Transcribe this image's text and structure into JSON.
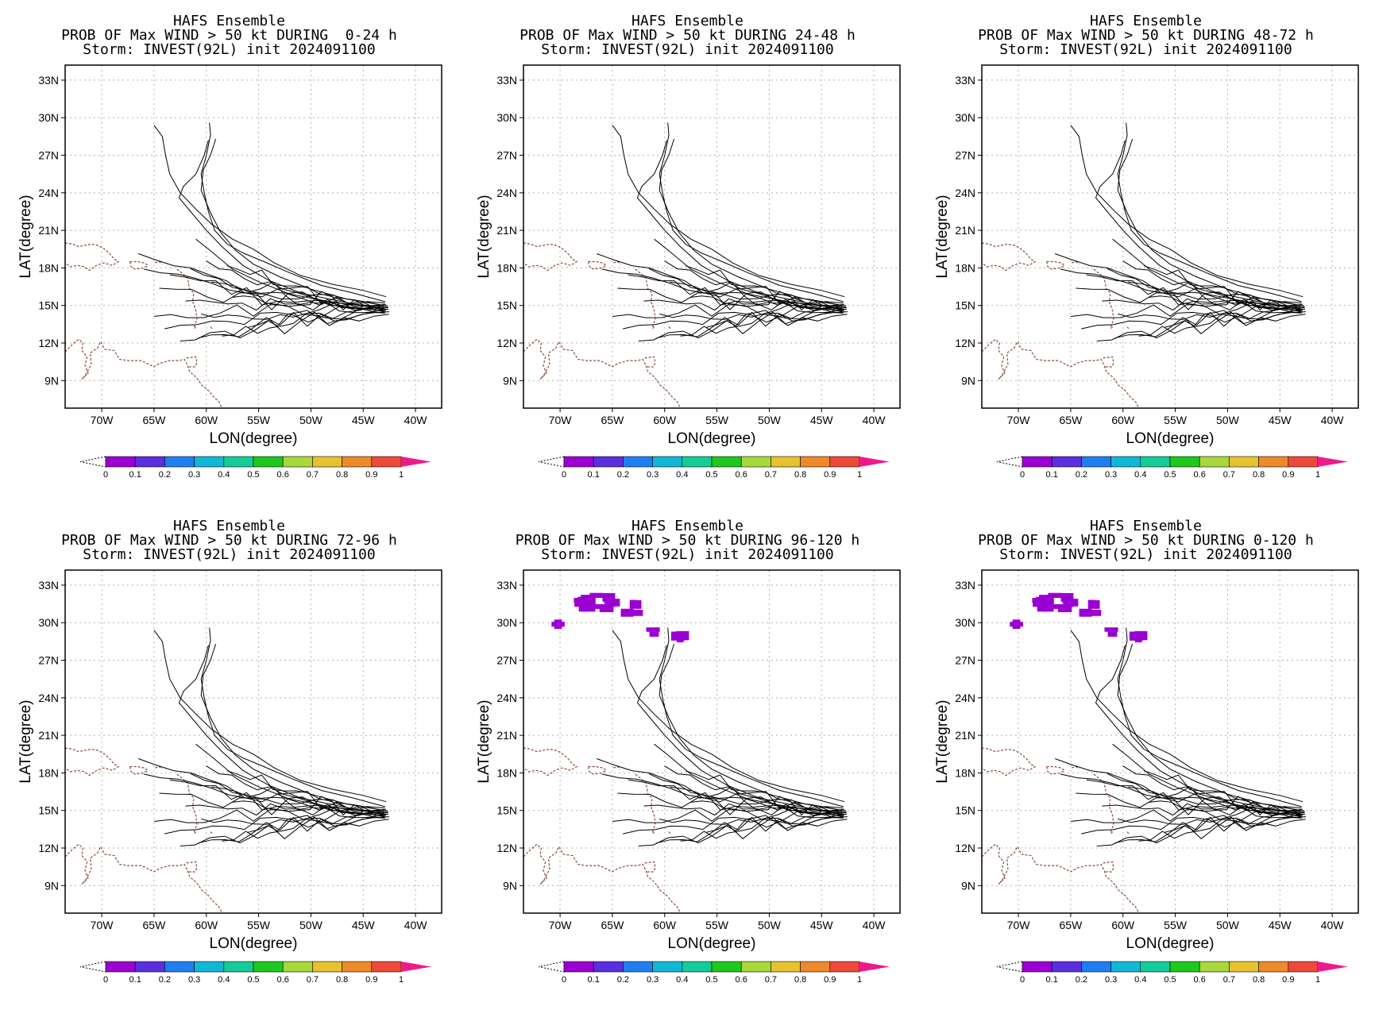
{
  "figure": {
    "colorbar": {
      "labels": [
        "0",
        "0.1",
        "0.2",
        "0.3",
        "0.4",
        "0.5",
        "0.6",
        "0.7",
        "0.8",
        "0.9",
        "1"
      ],
      "colors": [
        "#9b00d3",
        "#5a2fe0",
        "#1e7ff0",
        "#10b8d8",
        "#14cc98",
        "#1ec81e",
        "#a8d83a",
        "#e6c22e",
        "#ee8a2a",
        "#ee4a3a",
        "#ee1a8c"
      ]
    },
    "coast_color": "#8b4a3a",
    "track_color": "#000000",
    "prob_color": "#9b00d3"
  },
  "chart_data": [
    {
      "type": "map",
      "title": "HAFS Ensemble",
      "subtitle": "PROB OF Max WIND > 50 kt DURING  0-24 h",
      "storm": "Storm: INVEST(92L) init 2024091100",
      "xlabel": "LON(degree)",
      "ylabel": "LAT(degree)",
      "x_ticks": [
        "70W",
        "65W",
        "60W",
        "55W",
        "50W",
        "45W",
        "40W"
      ],
      "y_ticks": [
        "33N",
        "30N",
        "27N",
        "24N",
        "21N",
        "18N",
        "15N",
        "12N",
        "9N"
      ],
      "xlim": [
        -73.5,
        -37.5
      ],
      "ylim": [
        6.8,
        34.2
      ],
      "grid": true,
      "prob_regions": []
    },
    {
      "type": "map",
      "title": "HAFS Ensemble",
      "subtitle": "PROB OF Max WIND > 50 kt DURING 24-48 h",
      "storm": "Storm: INVEST(92L) init 2024091100",
      "xlabel": "LON(degree)",
      "ylabel": "LAT(degree)",
      "x_ticks": [
        "70W",
        "65W",
        "60W",
        "55W",
        "50W",
        "45W",
        "40W"
      ],
      "y_ticks": [
        "33N",
        "30N",
        "27N",
        "24N",
        "21N",
        "18N",
        "15N",
        "12N",
        "9N"
      ],
      "xlim": [
        -73.5,
        -37.5
      ],
      "ylim": [
        6.8,
        34.2
      ],
      "grid": true,
      "prob_regions": []
    },
    {
      "type": "map",
      "title": "HAFS Ensemble",
      "subtitle": "PROB OF Max WIND > 50 kt DURING 48-72 h",
      "storm": "Storm: INVEST(92L) init 2024091100",
      "xlabel": "LON(degree)",
      "ylabel": "LAT(degree)",
      "x_ticks": [
        "70W",
        "65W",
        "60W",
        "55W",
        "50W",
        "45W",
        "40W"
      ],
      "y_ticks": [
        "33N",
        "30N",
        "27N",
        "24N",
        "21N",
        "18N",
        "15N",
        "12N",
        "9N"
      ],
      "xlim": [
        -73.5,
        -37.5
      ],
      "ylim": [
        6.8,
        34.2
      ],
      "grid": true,
      "prob_regions": []
    },
    {
      "type": "map",
      "title": "HAFS Ensemble",
      "subtitle": "PROB OF Max WIND > 50 kt DURING 72-96 h",
      "storm": "Storm: INVEST(92L) init 2024091100",
      "xlabel": "LON(degree)",
      "ylabel": "LAT(degree)",
      "x_ticks": [
        "70W",
        "65W",
        "60W",
        "55W",
        "50W",
        "45W",
        "40W"
      ],
      "y_ticks": [
        "33N",
        "30N",
        "27N",
        "24N",
        "21N",
        "18N",
        "15N",
        "12N",
        "9N"
      ],
      "xlim": [
        -73.5,
        -37.5
      ],
      "ylim": [
        6.8,
        34.2
      ],
      "grid": true,
      "prob_regions": []
    },
    {
      "type": "map",
      "title": "HAFS Ensemble",
      "subtitle": "PROB OF Max WIND > 50 kt DURING 96-120 h",
      "storm": "Storm: INVEST(92L) init 2024091100",
      "xlabel": "LON(degree)",
      "ylabel": "LAT(degree)",
      "x_ticks": [
        "70W",
        "65W",
        "60W",
        "55W",
        "50W",
        "45W",
        "40W"
      ],
      "y_ticks": [
        "33N",
        "30N",
        "27N",
        "24N",
        "21N",
        "18N",
        "15N",
        "12N",
        "9N"
      ],
      "xlim": [
        -73.5,
        -37.5
      ],
      "ylim": [
        6.8,
        34.2
      ],
      "grid": true,
      "prob_regions": [
        {
          "lon": -66.5,
          "lat": 31.6,
          "prob": 0.05
        },
        {
          "lon": -63.0,
          "lat": 31.3,
          "prob": 0.05
        },
        {
          "lon": -58.5,
          "lat": 28.9,
          "prob": 0.05
        }
      ]
    },
    {
      "type": "map",
      "title": "HAFS Ensemble",
      "subtitle": "PROB OF Max WIND > 50 kt DURING 0-120 h",
      "storm": "Storm: INVEST(92L) init 2024091100",
      "xlabel": "LON(degree)",
      "ylabel": "LAT(degree)",
      "x_ticks": [
        "70W",
        "65W",
        "60W",
        "55W",
        "50W",
        "45W",
        "40W"
      ],
      "y_ticks": [
        "33N",
        "30N",
        "27N",
        "24N",
        "21N",
        "18N",
        "15N",
        "12N",
        "9N"
      ],
      "xlim": [
        -73.5,
        -37.5
      ],
      "ylim": [
        6.8,
        34.2
      ],
      "grid": true,
      "prob_regions": [
        {
          "lon": -66.5,
          "lat": 31.6,
          "prob": 0.05
        },
        {
          "lon": -63.0,
          "lat": 31.3,
          "prob": 0.05
        },
        {
          "lon": -58.5,
          "lat": 28.9,
          "prob": 0.05
        }
      ]
    }
  ]
}
